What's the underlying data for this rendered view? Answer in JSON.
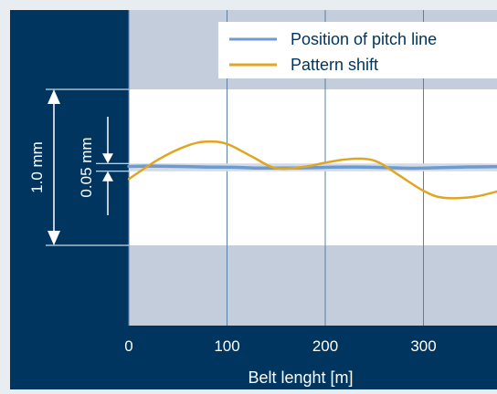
{
  "colors": {
    "background": "#e8edf2",
    "panel": "#003560",
    "band": "#c3cddc",
    "plot_white": "#ffffff",
    "grid": "#5b7fa6",
    "pitch_line": "#6b9bd1",
    "pitch_band": "#d3dbe6",
    "pattern_shift": "#e0a621",
    "text_light": "#ffffff",
    "text_dark": "#003560"
  },
  "chart_data": {
    "type": "line",
    "title": "",
    "xlabel": "Belt lenght [m]",
    "ylabel": "",
    "x_ticks": [
      "0",
      "100",
      "200",
      "300"
    ],
    "xlim": [
      0,
      375
    ],
    "ylim": [
      -0.5,
      0.5
    ],
    "dimension_labels": {
      "outer": "1.0 mm",
      "inner": "0.05 mm"
    },
    "legend": {
      "position": "top-right"
    },
    "series": [
      {
        "name": "Position of pitch line",
        "x": [
          0,
          20,
          50,
          80,
          110,
          130,
          160,
          190,
          210,
          240,
          260,
          290,
          310,
          340,
          375
        ],
        "y": [
          0.006,
          0.008,
          0.006,
          0.002,
          0.0,
          -0.004,
          -0.004,
          -0.002,
          0.001,
          0.002,
          -0.002,
          -0.006,
          -0.003,
          0.002,
          0.004
        ]
      },
      {
        "name": "Pattern shift",
        "x": [
          0,
          30,
          60,
          80,
          100,
          125,
          150,
          180,
          200,
          220,
          240,
          255,
          275,
          300,
          320,
          350,
          375
        ],
        "y": [
          -0.075,
          0.05,
          0.14,
          0.165,
          0.15,
          0.07,
          -0.005,
          0.005,
          0.03,
          0.05,
          0.055,
          0.03,
          -0.05,
          -0.15,
          -0.195,
          -0.19,
          -0.155
        ]
      }
    ]
  }
}
